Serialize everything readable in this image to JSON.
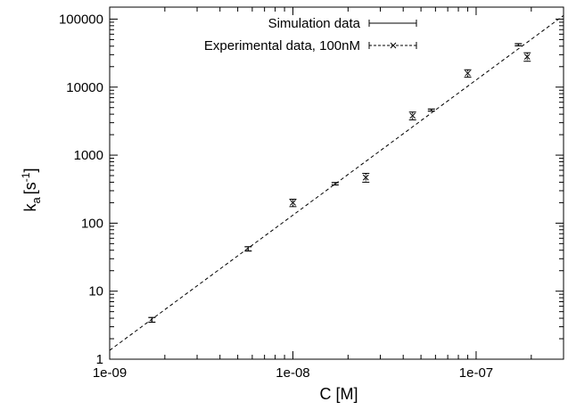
{
  "chart_data": {
    "type": "scatter",
    "xlabel": "C [M]",
    "ylabel_main": "k",
    "ylabel_sub": "a",
    "ylabel_bracket_open": "[s",
    "ylabel_sup": "-1",
    "ylabel_bracket_close": "]",
    "x_scale": "log",
    "y_scale": "log",
    "xlim": [
      1e-09,
      3e-07
    ],
    "ylim": [
      1,
      150000
    ],
    "grid": false,
    "legend_position": "top-right",
    "x_ticks": [
      {
        "value": 1e-09,
        "label": "1e-09"
      },
      {
        "value": 1e-08,
        "label": "1e-08"
      },
      {
        "value": 1e-07,
        "label": "1e-07"
      }
    ],
    "y_ticks": [
      {
        "value": 1,
        "label": "1"
      },
      {
        "value": 10,
        "label": "10"
      },
      {
        "value": 100,
        "label": "100"
      },
      {
        "value": 1000,
        "label": "1000"
      },
      {
        "value": 10000,
        "label": "10000"
      },
      {
        "value": 100000,
        "label": "100000"
      }
    ],
    "series": [
      {
        "name": "Simulation data",
        "marker": "errorbar",
        "points": [
          {
            "x": 1.7e-09,
            "y": 3.8,
            "err": 0.3
          },
          {
            "x": 5.7e-09,
            "y": 42,
            "err": 3
          },
          {
            "x": 1.7e-08,
            "y": 380,
            "err": 15
          },
          {
            "x": 5.7e-08,
            "y": 4600,
            "err": 150
          },
          {
            "x": 1.7e-07,
            "y": 42000,
            "err": 1500
          }
        ]
      },
      {
        "name": "Experimental data, 100nM",
        "marker": "cross",
        "points": [
          {
            "x": 1e-08,
            "y": 200,
            "err": 25
          },
          {
            "x": 2.5e-08,
            "y": 470,
            "err": 70
          },
          {
            "x": 4.5e-08,
            "y": 3800,
            "err": 500
          },
          {
            "x": 9e-08,
            "y": 16000,
            "err": 2000
          },
          {
            "x": 1.9e-07,
            "y": 28000,
            "err": 4000
          }
        ]
      },
      {
        "name": "fit",
        "marker": "line",
        "points": [
          {
            "x": 1e-09,
            "y": 1.35
          },
          {
            "x": 3e-07,
            "y": 113000
          }
        ]
      }
    ]
  }
}
